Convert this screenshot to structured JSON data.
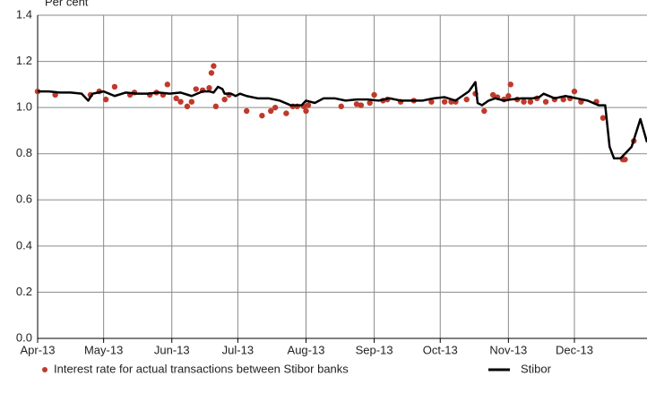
{
  "chart_data": {
    "type": "line",
    "y_label": "Per cent",
    "xlim": [
      0,
      277
    ],
    "xticks": [
      {
        "value": 0,
        "label": "Apr-13"
      },
      {
        "value": 30,
        "label": "May-13"
      },
      {
        "value": 61,
        "label": "Jun-13"
      },
      {
        "value": 91,
        "label": "Jul-13"
      },
      {
        "value": 122,
        "label": "Aug-13"
      },
      {
        "value": 153,
        "label": "Sep-13"
      },
      {
        "value": 183,
        "label": "Oct-13"
      },
      {
        "value": 214,
        "label": "Nov-13"
      },
      {
        "value": 244,
        "label": "Dec-13"
      }
    ],
    "ylim": [
      0,
      1.4
    ],
    "yticks": [
      {
        "value": 0,
        "label": "0.0"
      },
      0.2,
      0.4,
      0.6,
      0.8,
      {
        "value": 1,
        "label": "1.0"
      },
      1.2,
      1.4
    ],
    "grid": true,
    "legend": "bottom",
    "series": [
      {
        "name": "Interest rate for actual transactions between Stibor banks",
        "type": "scatter",
        "color": "#c0392b",
        "x": [
          0,
          8,
          24,
          28,
          31,
          35,
          42,
          44,
          51,
          54,
          57,
          59,
          63,
          65,
          68,
          70,
          72,
          75,
          78,
          79,
          80,
          81,
          85,
          87,
          95,
          102,
          106,
          108,
          113,
          116,
          118,
          121,
          122,
          123,
          138,
          145,
          147,
          151,
          153,
          157,
          159,
          165,
          171,
          179,
          185,
          188,
          190,
          195,
          199,
          203,
          207,
          209,
          212,
          214,
          215,
          218,
          221,
          224,
          227,
          231,
          235,
          239,
          242,
          244,
          247,
          254,
          257,
          266,
          267,
          271
        ],
        "values": [
          1.07,
          1.055,
          1.055,
          1.07,
          1.035,
          1.09,
          1.055,
          1.065,
          1.055,
          1.065,
          1.055,
          1.1,
          1.04,
          1.025,
          1.005,
          1.025,
          1.08,
          1.075,
          1.085,
          1.15,
          1.18,
          1.005,
          1.035,
          1.055,
          0.985,
          0.965,
          0.985,
          1.0,
          0.975,
          1.005,
          1.005,
          1.005,
          0.985,
          1.01,
          1.005,
          1.015,
          1.01,
          1.02,
          1.055,
          1.03,
          1.035,
          1.025,
          1.03,
          1.025,
          1.025,
          1.025,
          1.025,
          1.035,
          1.06,
          0.985,
          1.055,
          1.045,
          1.035,
          1.05,
          1.1,
          1.035,
          1.025,
          1.025,
          1.04,
          1.025,
          1.035,
          1.035,
          1.04,
          1.07,
          1.025,
          1.025,
          0.955,
          0.775,
          0.775,
          0.855
        ]
      },
      {
        "name": "Stibor",
        "type": "line",
        "color": "#000000",
        "x": [
          0,
          5,
          10,
          15,
          20,
          23,
          25,
          30,
          35,
          40,
          45,
          50,
          55,
          60,
          65,
          70,
          75,
          78,
          80,
          82,
          84,
          85,
          88,
          90,
          92,
          95,
          100,
          105,
          110,
          115,
          120,
          122,
          126,
          130,
          135,
          140,
          145,
          150,
          155,
          160,
          165,
          170,
          175,
          180,
          185,
          190,
          193,
          196,
          199,
          200,
          202,
          205,
          208,
          212,
          215,
          220,
          225,
          228,
          230,
          235,
          240,
          245,
          250,
          255,
          258,
          260,
          262,
          265,
          270,
          274,
          277
        ],
        "values": [
          1.07,
          1.07,
          1.065,
          1.065,
          1.06,
          1.03,
          1.06,
          1.07,
          1.05,
          1.065,
          1.06,
          1.06,
          1.065,
          1.06,
          1.065,
          1.05,
          1.07,
          1.07,
          1.065,
          1.09,
          1.08,
          1.06,
          1.06,
          1.05,
          1.06,
          1.05,
          1.04,
          1.04,
          1.03,
          1.01,
          1.01,
          1.03,
          1.02,
          1.04,
          1.04,
          1.03,
          1.035,
          1.035,
          1.03,
          1.04,
          1.03,
          1.03,
          1.03,
          1.04,
          1.045,
          1.03,
          1.05,
          1.07,
          1.11,
          1.02,
          1.01,
          1.03,
          1.04,
          1.03,
          1.035,
          1.04,
          1.04,
          1.045,
          1.06,
          1.04,
          1.05,
          1.04,
          1.03,
          1.01,
          1.01,
          0.83,
          0.78,
          0.78,
          0.83,
          0.95,
          0.85
        ]
      }
    ]
  }
}
